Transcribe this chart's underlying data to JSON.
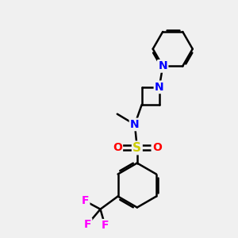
{
  "bg_color": "#f0f0f0",
  "bond_color": "#000000",
  "bond_width": 1.8,
  "atom_colors": {
    "N": "#0000ff",
    "S": "#cccc00",
    "O": "#ff0000",
    "F": "#ff00ff",
    "C": "#000000"
  },
  "font_size": 10,
  "fig_size": [
    3.0,
    3.0
  ],
  "dpi": 100
}
